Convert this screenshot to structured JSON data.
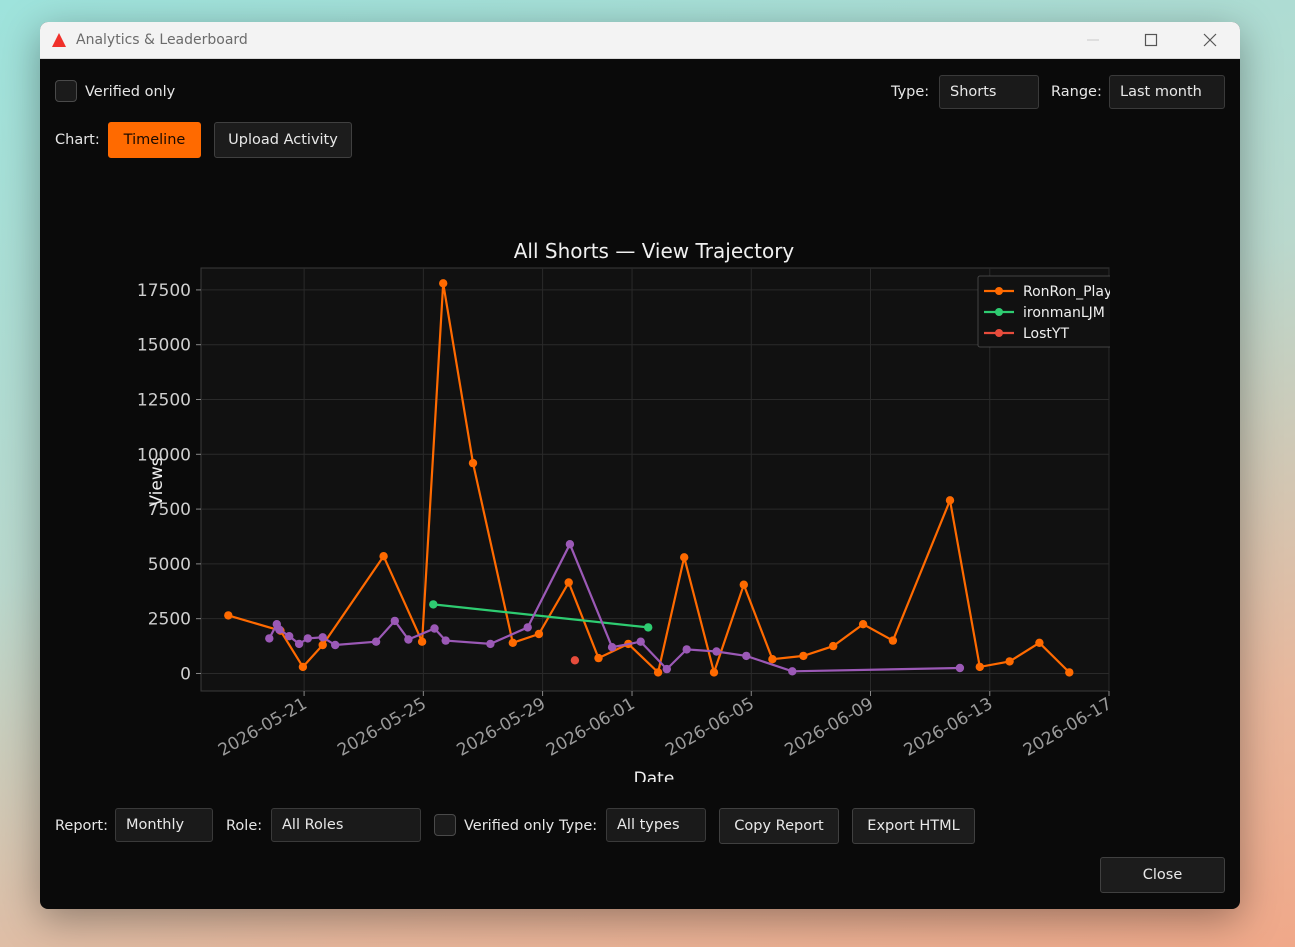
{
  "window": {
    "title": "Analytics & Leaderboard"
  },
  "top": {
    "verified_label": "Verified only",
    "type_label": "Type:",
    "type_value": "Shorts",
    "range_label": "Range:",
    "range_value": "Last month",
    "chart_label": "Chart:",
    "tab_timeline": "Timeline",
    "tab_upload": "Upload Activity"
  },
  "bottom": {
    "report_label": "Report:",
    "report_value": "Monthly",
    "role_label": "Role:",
    "role_value": "All Roles",
    "verified_label": "Verified only",
    "type_label": "Type:",
    "type_value": "All types",
    "copy_report": "Copy Report",
    "export_html": "Export HTML",
    "close": "Close"
  },
  "colors": {
    "accent": "#ff6a00",
    "ronron": "#ff6a00",
    "ironman": "#2ecc71",
    "lost": "#e74c3c",
    "purple": "#9b59b6"
  },
  "icons": {
    "app": "red-triangle-icon",
    "minimize": "minimize-icon",
    "maximize": "maximize-icon",
    "close": "close-icon"
  },
  "chart_data": {
    "type": "line",
    "title": "All Shorts — View Trajectory",
    "xlabel": "Date",
    "ylabel": "Views",
    "x_type": "date",
    "xlim": [
      "2026-05-17T13:00",
      "2026-06-17T00:00"
    ],
    "ylim": [
      -800,
      18500
    ],
    "xticks": [
      "2026-05-21",
      "2026-05-25",
      "2026-05-29",
      "2026-06-01",
      "2026-06-05",
      "2026-06-09",
      "2026-06-13",
      "2026-06-17"
    ],
    "yticks": [
      0,
      2500,
      5000,
      7500,
      10000,
      12500,
      15000,
      17500
    ],
    "grid": true,
    "legend_position": "top-right",
    "series": [
      {
        "name": "RonRon_PlayzYT",
        "color": "#ff6a00",
        "points": [
          [
            "2026-05-18T11:00",
            2650
          ],
          [
            "2026-05-20T05:00",
            1950
          ],
          [
            "2026-05-20T23:00",
            300
          ],
          [
            "2026-05-21T15:00",
            1300
          ],
          [
            "2026-05-23T16:00",
            5350
          ],
          [
            "2026-05-24T23:00",
            1450
          ],
          [
            "2026-05-25T16:00",
            17800
          ],
          [
            "2026-05-26T16:00",
            9600
          ],
          [
            "2026-05-28T00:00",
            1400
          ],
          [
            "2026-05-28T21:00",
            1800
          ],
          [
            "2026-05-29T21:00",
            4150
          ],
          [
            "2026-05-30T21:00",
            700
          ],
          [
            "2026-05-31T21:00",
            1350
          ],
          [
            "2026-06-01T21:00",
            50
          ],
          [
            "2026-06-02T18:00",
            5300
          ],
          [
            "2026-06-03T18:00",
            50
          ],
          [
            "2026-06-04T18:00",
            4050
          ],
          [
            "2026-06-05T17:00",
            650
          ],
          [
            "2026-06-06T18:00",
            800
          ],
          [
            "2026-06-07T18:00",
            1250
          ],
          [
            "2026-06-08T18:00",
            2250
          ],
          [
            "2026-06-09T18:00",
            1500
          ],
          [
            "2026-06-11T16:00",
            7900
          ],
          [
            "2026-06-12T16:00",
            300
          ],
          [
            "2026-06-13T16:00",
            550
          ],
          [
            "2026-06-14T16:00",
            1400
          ],
          [
            "2026-06-15T16:00",
            50
          ]
        ]
      },
      {
        "name": "ironmanLJM",
        "color": "#2ecc71",
        "points": [
          [
            "2026-05-25T08:00",
            3150
          ],
          [
            "2026-06-01T13:00",
            2100
          ]
        ]
      },
      {
        "name": "LostYT",
        "color": "#e74c3c",
        "points": [
          [
            "2026-05-30T02:00",
            600
          ]
        ]
      },
      {
        "color": "#9b59b6",
        "points": [
          [
            "2026-05-19T20:00",
            1600
          ],
          [
            "2026-05-20T02:00",
            2250
          ],
          [
            "2026-05-20T04:00",
            2000
          ],
          [
            "2026-05-20T12:00",
            1700
          ],
          [
            "2026-05-20T20:00",
            1350
          ],
          [
            "2026-05-21T03:00",
            1600
          ],
          [
            "2026-05-21T15:00",
            1650
          ],
          [
            "2026-05-22T01:00",
            1300
          ],
          [
            "2026-05-23T10:00",
            1450
          ],
          [
            "2026-05-24T01:00",
            2400
          ],
          [
            "2026-05-24T12:00",
            1550
          ],
          [
            "2026-05-25T09:00",
            2050
          ],
          [
            "2026-05-25T18:00",
            1500
          ],
          [
            "2026-05-27T06:00",
            1350
          ],
          [
            "2026-05-28T12:00",
            2100
          ],
          [
            "2026-05-29T22:00",
            5900
          ],
          [
            "2026-05-31T08:00",
            1200
          ],
          [
            "2026-06-01T07:00",
            1450
          ],
          [
            "2026-06-02T04:00",
            200
          ],
          [
            "2026-06-02T20:00",
            1100
          ],
          [
            "2026-06-03T20:00",
            1000
          ],
          [
            "2026-06-04T20:00",
            800
          ],
          [
            "2026-06-06T09:00",
            100
          ],
          [
            "2026-06-12T00:00",
            250
          ]
        ]
      }
    ]
  }
}
